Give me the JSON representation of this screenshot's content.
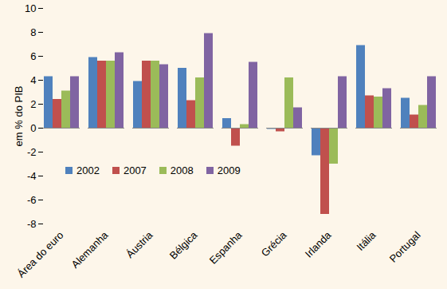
{
  "chart_data": {
    "type": "bar",
    "y_label": "em % do PIB",
    "categories": [
      "Área do euro",
      "Alemanha",
      "Áustria",
      "Bélgica",
      "Espanha",
      "Grécia",
      "Irlanda",
      "Itália",
      "Portugal"
    ],
    "series": [
      {
        "name": "2002",
        "color": "#4f81bd",
        "values": [
          4.3,
          5.9,
          3.9,
          5.0,
          0.8,
          -0.1,
          -2.3,
          6.9,
          2.5
        ]
      },
      {
        "name": "2007",
        "color": "#c0504d",
        "values": [
          2.4,
          5.6,
          5.6,
          2.3,
          -1.5,
          -0.3,
          -7.2,
          2.7,
          1.1
        ]
      },
      {
        "name": "2008",
        "color": "#9bbb59",
        "values": [
          3.1,
          5.6,
          5.6,
          4.2,
          0.3,
          4.2,
          -3.0,
          2.6,
          1.9
        ]
      },
      {
        "name": "2009",
        "color": "#8064a2",
        "values": [
          4.3,
          6.3,
          5.3,
          7.9,
          5.5,
          1.7,
          4.3,
          3.3,
          4.3
        ]
      }
    ],
    "ylim": [
      -8,
      10
    ],
    "yticks": [
      -8,
      -6,
      -4,
      -2,
      0,
      2,
      4,
      6,
      8,
      10
    ],
    "grid": false,
    "legend": "bottom-left"
  }
}
